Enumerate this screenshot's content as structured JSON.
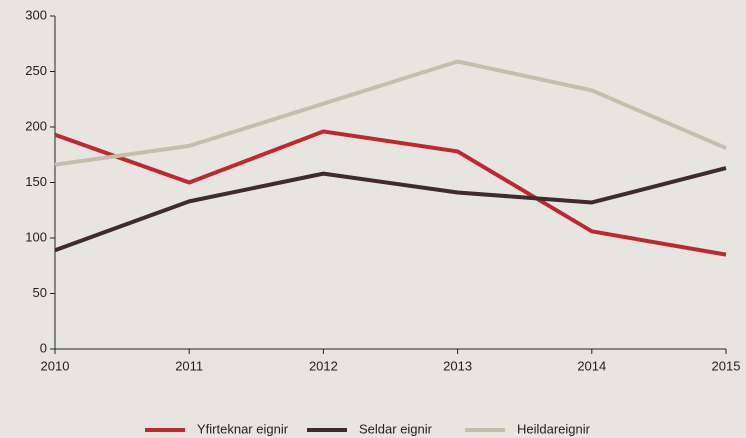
{
  "chart_data": {
    "type": "line",
    "x": [
      2010,
      2011,
      2012,
      2013,
      2014,
      2015
    ],
    "xlim": [
      2010,
      2015
    ],
    "xticks": [
      2010,
      2011,
      2012,
      2013,
      2014,
      2015
    ],
    "ylim": [
      0,
      300
    ],
    "yticks": [
      0,
      50,
      100,
      150,
      200,
      250,
      300
    ],
    "legend": "bottom",
    "series": [
      {
        "name": "Yfirteknar eignir",
        "color": "#c0282d",
        "values": [
          193,
          150,
          196,
          178,
          106,
          85
        ]
      },
      {
        "name": "Seldar eignir",
        "color": "#3f2a2e",
        "values": [
          89,
          133,
          158,
          141,
          132,
          163
        ]
      },
      {
        "name": "Heildareignir",
        "color": "#c2c0ad",
        "values": [
          166,
          183,
          221,
          259,
          233,
          181
        ]
      }
    ]
  }
}
